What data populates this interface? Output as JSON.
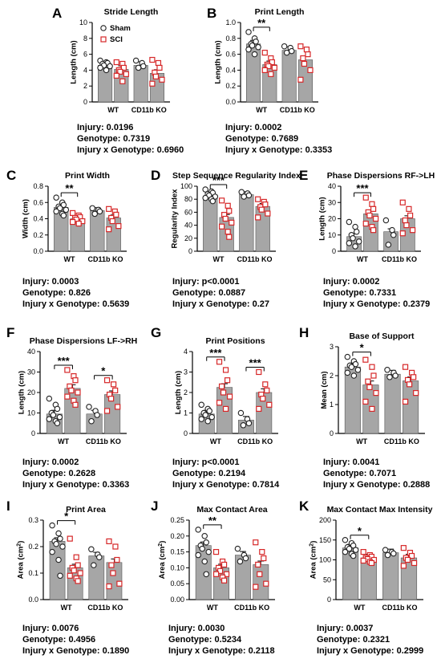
{
  "colors": {
    "bar": "#a6a6a6",
    "sham": "#222222",
    "sci": "#d62728"
  },
  "chart_data": [
    {
      "letter": "A",
      "title": "Stride Length",
      "type": "bar",
      "ylabel": "Length (cm)",
      "ylim": [
        0,
        10
      ],
      "yticks": [
        0,
        2,
        4,
        6,
        8,
        10
      ],
      "categories": [
        "WT",
        "CD11b KO"
      ],
      "legend": [
        "Sham",
        "SCI"
      ],
      "legend_position": "top-left",
      "series": [
        {
          "name": "Sham",
          "values": [
            4.6,
            4.6
          ]
        },
        {
          "name": "SCI",
          "values": [
            4.1,
            3.6
          ]
        }
      ],
      "points": {
        "Sham": [
          [
            5.2,
            5.0,
            4.9,
            4.8,
            4.6,
            4.5,
            4.3,
            4.0
          ],
          [
            5.2,
            4.9,
            4.5,
            4.3
          ]
        ],
        "SCI": [
          [
            5.0,
            4.8,
            4.3,
            4.0,
            3.8,
            3.5,
            3.3,
            2.6
          ],
          [
            5.3,
            4.9,
            4.3,
            3.7,
            3.2,
            2.8,
            2.3
          ]
        ]
      },
      "significance": [],
      "stats": [
        "Injury: 0.0196",
        "Genotype: 0.7319",
        "Injury x Genotype: 0.6960"
      ]
    },
    {
      "letter": "B",
      "title": "Print Length",
      "type": "bar",
      "ylabel": "Length (cm)",
      "ylim": [
        0,
        1.0
      ],
      "yticks": [
        0.0,
        0.2,
        0.4,
        0.6,
        0.8,
        1.0
      ],
      "categories": [
        "WT",
        "CD11b KO"
      ],
      "series": [
        {
          "name": "Sham",
          "values": [
            0.73,
            0.65
          ]
        },
        {
          "name": "SCI",
          "values": [
            0.47,
            0.53
          ]
        }
      ],
      "points": {
        "Sham": [
          [
            0.88,
            0.8,
            0.76,
            0.73,
            0.71,
            0.69,
            0.66,
            0.6
          ],
          [
            0.7,
            0.68,
            0.64,
            0.62
          ]
        ],
        "SCI": [
          [
            0.62,
            0.55,
            0.5,
            0.47,
            0.45,
            0.43,
            0.4,
            0.35
          ],
          [
            0.7,
            0.66,
            0.6,
            0.55,
            0.48,
            0.4,
            0.28
          ]
        ]
      },
      "significance": [
        {
          "group": 0,
          "label": "**"
        }
      ],
      "stats": [
        "Injury: 0.0002",
        "Genotype: 0.7689",
        "Injury x Genotype: 0.3353"
      ]
    },
    {
      "letter": "C",
      "title": "Print Width",
      "type": "bar",
      "ylabel": "Width (cm)",
      "ylim": [
        0,
        0.8
      ],
      "yticks": [
        0.0,
        0.2,
        0.4,
        0.6,
        0.8
      ],
      "categories": [
        "WT",
        "CD11b KO"
      ],
      "series": [
        {
          "name": "Sham",
          "values": [
            0.54,
            0.5
          ]
        },
        {
          "name": "SCI",
          "values": [
            0.4,
            0.41
          ]
        }
      ],
      "points": {
        "Sham": [
          [
            0.66,
            0.6,
            0.57,
            0.55,
            0.53,
            0.51,
            0.49,
            0.46,
            0.44
          ],
          [
            0.53,
            0.51,
            0.49,
            0.46
          ]
        ],
        "SCI": [
          [
            0.47,
            0.44,
            0.42,
            0.41,
            0.39,
            0.37,
            0.36,
            0.34
          ],
          [
            0.52,
            0.49,
            0.45,
            0.41,
            0.37,
            0.31,
            0.27
          ]
        ]
      },
      "significance": [
        {
          "group": 0,
          "label": "**"
        }
      ],
      "stats": [
        "Injury: 0.0003",
        "Genotype: 0.826",
        "Injury x Genotype: 0.5639"
      ]
    },
    {
      "letter": "D",
      "title": "Step Sequence Regularity Index",
      "type": "bar",
      "ylabel": "Regularity Index",
      "ylim": [
        0,
        100
      ],
      "yticks": [
        0,
        20,
        40,
        60,
        80,
        100
      ],
      "categories": [
        "WT",
        "CD11b KO"
      ],
      "series": [
        {
          "name": "Sham",
          "values": [
            85,
            87
          ]
        },
        {
          "name": "SCI",
          "values": [
            52,
            69
          ]
        }
      ],
      "points": {
        "Sham": [
          [
            95,
            92,
            90,
            88,
            86,
            84,
            82,
            80,
            77
          ],
          [
            91,
            89,
            86,
            84
          ]
        ],
        "SCI": [
          [
            78,
            70,
            62,
            56,
            50,
            44,
            38,
            30,
            22
          ],
          [
            80,
            76,
            72,
            68,
            64,
            58,
            52
          ]
        ]
      },
      "significance": [
        {
          "group": 0,
          "label": "***"
        }
      ],
      "stats": [
        "Injury: p<0.0001",
        "Genotype: 0.0887",
        "Injury x Genotype: 0.27"
      ]
    },
    {
      "letter": "E",
      "title": "Phase Dispersions RF->LH",
      "type": "bar",
      "ylabel": "Length (cm)",
      "ylim": [
        0,
        40
      ],
      "yticks": [
        0,
        10,
        20,
        30,
        40
      ],
      "categories": [
        "WT",
        "CD11b KO"
      ],
      "series": [
        {
          "name": "Sham",
          "values": [
            9,
            12
          ]
        },
        {
          "name": "SCI",
          "values": [
            23,
            20
          ]
        }
      ],
      "points": {
        "Sham": [
          [
            18,
            15,
            12,
            10,
            8,
            6,
            5,
            3
          ],
          [
            19,
            13,
            10,
            4
          ]
        ],
        "SCI": [
          [
            33,
            29,
            26,
            24,
            22,
            20,
            17,
            15,
            13
          ],
          [
            30,
            26,
            22,
            19,
            16,
            13,
            11
          ]
        ]
      },
      "significance": [
        {
          "group": 0,
          "label": "***"
        }
      ],
      "stats": [
        "Injury: 0.0002",
        "Genotype: 0.7331",
        "Injury x Genotype: 0.2379"
      ]
    },
    {
      "letter": "F",
      "title": "Phase Dispersions LF->RH",
      "type": "bar",
      "ylabel": "Length (cm)",
      "ylim": [
        0,
        40
      ],
      "yticks": [
        0,
        10,
        20,
        30,
        40
      ],
      "categories": [
        "WT",
        "CD11b KO"
      ],
      "series": [
        {
          "name": "Sham",
          "values": [
            9.5,
            9.5
          ]
        },
        {
          "name": "SCI",
          "values": [
            22,
            19
          ]
        }
      ],
      "points": {
        "Sham": [
          [
            17,
            14,
            12,
            10,
            9,
            8,
            7,
            6,
            5
          ],
          [
            13,
            11,
            9,
            6
          ]
        ],
        "SCI": [
          [
            31,
            28,
            26,
            23,
            21,
            20,
            18,
            16,
            14
          ],
          [
            26,
            24,
            21,
            19,
            17,
            13,
            11
          ]
        ]
      },
      "significance": [
        {
          "group": 0,
          "label": "***"
        },
        {
          "group": 1,
          "label": "*"
        }
      ],
      "stats": [
        "Injury: 0.0002",
        "Genotype: 0.2628",
        "Injury x Genotype: 0.3363"
      ]
    },
    {
      "letter": "G",
      "title": "Print Positions",
      "type": "bar",
      "ylabel": "Length (cm)",
      "ylim": [
        0,
        4
      ],
      "yticks": [
        0,
        1,
        2,
        3,
        4
      ],
      "categories": [
        "WT",
        "CD11b KO"
      ],
      "series": [
        {
          "name": "Sham",
          "values": [
            0.95,
            0.65
          ]
        },
        {
          "name": "SCI",
          "values": [
            2.25,
            2.0
          ]
        }
      ],
      "points": {
        "Sham": [
          [
            1.4,
            1.2,
            1.1,
            1.0,
            0.9,
            0.8,
            0.7,
            0.6
          ],
          [
            1.0,
            0.7,
            0.5,
            0.4
          ]
        ],
        "SCI": [
          [
            3.5,
            3.1,
            2.6,
            2.3,
            2.0,
            1.8,
            1.5,
            1.2
          ],
          [
            3.0,
            2.4,
            2.1,
            1.9,
            1.7,
            1.4,
            1.2
          ]
        ]
      },
      "significance": [
        {
          "group": 0,
          "label": "***"
        },
        {
          "group": 1,
          "label": "***"
        }
      ],
      "stats": [
        "Injury: p<0.0001",
        "Genotype: 0.2194",
        "Injury x Genotype: 0.7814"
      ]
    },
    {
      "letter": "H",
      "title": "Base of Support",
      "type": "bar",
      "ylabel": "Mean (cm)",
      "ylim": [
        0,
        3
      ],
      "yticks": [
        0,
        1,
        2,
        3
      ],
      "categories": [
        "WT",
        "CD11b KO"
      ],
      "series": [
        {
          "name": "Sham",
          "values": [
            2.3,
            2.05
          ]
        },
        {
          "name": "SCI",
          "values": [
            1.68,
            1.82
          ]
        }
      ],
      "points": {
        "Sham": [
          [
            2.65,
            2.5,
            2.4,
            2.35,
            2.3,
            2.2,
            2.1,
            2.0
          ],
          [
            2.2,
            2.1,
            2.0,
            1.95
          ]
        ],
        "SCI": [
          [
            2.55,
            2.3,
            2.0,
            1.8,
            1.6,
            1.4,
            1.1,
            0.85
          ],
          [
            2.3,
            2.1,
            1.95,
            1.85,
            1.7,
            1.4,
            1.1
          ]
        ]
      },
      "significance": [
        {
          "group": 0,
          "label": "*"
        }
      ],
      "stats": [
        "Injury: 0.0041",
        "Genotype: 0.7071",
        "Injury x Genotype: 0.2888"
      ]
    },
    {
      "letter": "I",
      "title": "Print Area",
      "type": "bar",
      "ylabel": "Area (cm",
      "ylabel_sup": "2",
      "ylabel_end": ")",
      "ylim": [
        0,
        0.3
      ],
      "yticks": [
        0.0,
        0.1,
        0.2,
        0.3
      ],
      "categories": [
        "WT",
        "CD11b KO"
      ],
      "series": [
        {
          "name": "Sham",
          "values": [
            0.22,
            0.165
          ]
        },
        {
          "name": "SCI",
          "values": [
            0.12,
            0.14
          ]
        }
      ],
      "points": {
        "Sham": [
          [
            0.28,
            0.25,
            0.23,
            0.22,
            0.21,
            0.2,
            0.18,
            0.15,
            0.09
          ],
          [
            0.19,
            0.17,
            0.16,
            0.13
          ]
        ],
        "SCI": [
          [
            0.23,
            0.16,
            0.13,
            0.12,
            0.11,
            0.1,
            0.09,
            0.08,
            0.07
          ],
          [
            0.22,
            0.2,
            0.15,
            0.13,
            0.1,
            0.06,
            0.05
          ]
        ]
      },
      "significance": [
        {
          "group": 0,
          "label": "*"
        }
      ],
      "stats": [
        "Injury: 0.0076",
        "Genotype: 0.4956",
        "Injury x Genotype: 0.1890"
      ]
    },
    {
      "letter": "J",
      "title": "Max Contact Area",
      "type": "bar",
      "ylabel": "Area (cm",
      "ylabel_sup": "2",
      "ylabel_end": ")",
      "ylim": [
        0,
        0.25
      ],
      "yticks": [
        0.0,
        0.05,
        0.1,
        0.15,
        0.2,
        0.25
      ],
      "categories": [
        "WT",
        "CD11b KO"
      ],
      "series": [
        {
          "name": "Sham",
          "values": [
            0.17,
            0.14
          ]
        },
        {
          "name": "SCI",
          "values": [
            0.1,
            0.11
          ]
        }
      ],
      "points": {
        "Sham": [
          [
            0.22,
            0.2,
            0.18,
            0.17,
            0.16,
            0.15,
            0.14,
            0.12,
            0.08
          ],
          [
            0.16,
            0.14,
            0.13,
            0.12
          ]
        ],
        "SCI": [
          [
            0.15,
            0.12,
            0.11,
            0.1,
            0.09,
            0.08,
            0.08,
            0.07,
            0.06
          ],
          [
            0.18,
            0.15,
            0.13,
            0.11,
            0.08,
            0.05,
            0.04
          ]
        ]
      },
      "significance": [
        {
          "group": 0,
          "label": "**"
        }
      ],
      "stats": [
        "Injury: 0.0030",
        "Genotype: 0.5234",
        "Injury x Genotype: 0.2118"
      ]
    },
    {
      "letter": "K",
      "title": "Max Contact Max Intensity",
      "type": "bar",
      "ylabel": "Area (cm",
      "ylabel_sup": "2",
      "ylabel_end": ")",
      "ylim": [
        0,
        200
      ],
      "yticks": [
        0,
        50,
        100,
        150,
        200
      ],
      "categories": [
        "WT",
        "CD11b KO"
      ],
      "series": [
        {
          "name": "Sham",
          "values": [
            130,
            118
          ]
        },
        {
          "name": "SCI",
          "values": [
            105,
            105
          ]
        }
      ],
      "points": {
        "Sham": [
          [
            150,
            142,
            136,
            132,
            128,
            125,
            120,
            115,
            110
          ],
          [
            125,
            120,
            116,
            112
          ]
        ],
        "SCI": [
          [
            120,
            112,
            108,
            105,
            102,
            100,
            98,
            95,
            92
          ],
          [
            130,
            118,
            110,
            105,
            100,
            92,
            85
          ]
        ]
      },
      "significance": [
        {
          "group": 0,
          "label": "*"
        }
      ],
      "stats": [
        "Injury: 0.0037",
        "Genotype: 0.2321",
        "Injury x Genotype: 0.2999"
      ]
    }
  ]
}
